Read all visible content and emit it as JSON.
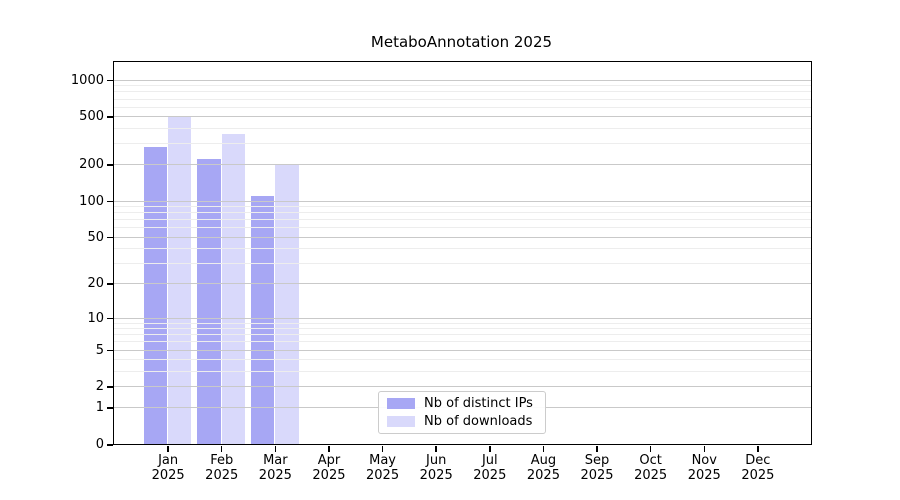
{
  "chart_data": {
    "type": "bar",
    "title": "MetaboAnnotation 2025",
    "categories": [
      "Jan",
      "Feb",
      "Mar",
      "Apr",
      "May",
      "Jun",
      "Jul",
      "Aug",
      "Sep",
      "Oct",
      "Nov",
      "Dec"
    ],
    "year_label": "2025",
    "series": [
      {
        "name": "Nb of distinct IPs",
        "color": "#a7a7f4",
        "values": [
          280,
          220,
          110,
          0,
          0,
          0,
          0,
          0,
          0,
          0,
          0,
          0
        ]
      },
      {
        "name": "Nb of downloads",
        "color": "#d9d9fb",
        "values": [
          500,
          355,
          200,
          0,
          0,
          0,
          0,
          0,
          0,
          0,
          0,
          0
        ]
      }
    ],
    "yscale": "log10(1+x)",
    "yticks": [
      0,
      1,
      2,
      5,
      10,
      20,
      50,
      100,
      200,
      500,
      1000
    ],
    "ylim": [
      0,
      1400
    ],
    "xlabel": "",
    "ylabel": "",
    "grid": "horizontal major and minor gridlines drawn over bars",
    "legend_position": "lower center, inside plot"
  }
}
